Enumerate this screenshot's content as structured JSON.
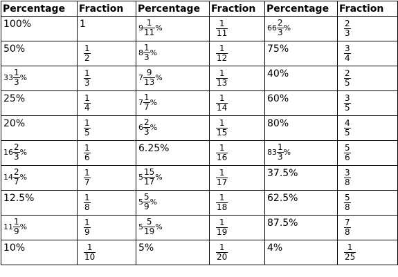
{
  "headers": [
    "Percentage",
    "Fraction",
    "Percentage",
    "Fraction",
    "Percentage",
    "Fraction"
  ],
  "rows": [
    [
      {
        "text": "100%"
      },
      {
        "text": "1"
      },
      {
        "whole": "9",
        "num": "1",
        "den": "11",
        "pct": "%"
      },
      {
        "num": "1",
        "den": "11"
      },
      {
        "whole": "66",
        "num": "2",
        "den": "3",
        "pct": "%"
      },
      {
        "num": "2",
        "den": "3"
      }
    ],
    [
      {
        "text": "50%"
      },
      {
        "num": "1",
        "den": "2"
      },
      {
        "whole": "8",
        "num": "1",
        "den": "3",
        "pct": "%"
      },
      {
        "num": "1",
        "den": "12"
      },
      {
        "text": "75%"
      },
      {
        "num": "3",
        "den": "4"
      }
    ],
    [
      {
        "whole": "33",
        "num": "1",
        "den": "3",
        "pct": "%"
      },
      {
        "num": "1",
        "den": "3"
      },
      {
        "whole": "7",
        "num": "9",
        "den": "13",
        "pct": "%"
      },
      {
        "num": "1",
        "den": "13"
      },
      {
        "text": "40%"
      },
      {
        "num": "2",
        "den": "5"
      }
    ],
    [
      {
        "text": "25%"
      },
      {
        "num": "1",
        "den": "4"
      },
      {
        "whole": "7",
        "num": "1",
        "den": "7",
        "pct": "%"
      },
      {
        "num": "1",
        "den": "14"
      },
      {
        "text": "60%"
      },
      {
        "num": "3",
        "den": "5"
      }
    ],
    [
      {
        "text": "20%"
      },
      {
        "num": "1",
        "den": "5"
      },
      {
        "whole": "6",
        "num": "2",
        "den": "3",
        "pct": "%"
      },
      {
        "num": "1",
        "den": "15"
      },
      {
        "text": "80%"
      },
      {
        "num": "4",
        "den": "5"
      }
    ],
    [
      {
        "whole": "16",
        "num": "2",
        "den": "3",
        "pct": "%"
      },
      {
        "num": "1",
        "den": "6"
      },
      {
        "text": "6.25%"
      },
      {
        "num": "1",
        "den": "16"
      },
      {
        "whole": "83",
        "num": "1",
        "den": "3",
        "pct": "%"
      },
      {
        "num": "5",
        "den": "6"
      }
    ],
    [
      {
        "whole": "14",
        "num": "2",
        "den": "7",
        "pct": "%"
      },
      {
        "num": "1",
        "den": "7"
      },
      {
        "whole": "5",
        "num": "15",
        "den": "17",
        "pct": "%"
      },
      {
        "num": "1",
        "den": "17"
      },
      {
        "text": "37.5%"
      },
      {
        "num": "3",
        "den": "8"
      }
    ],
    [
      {
        "text": "12.5%"
      },
      {
        "num": "1",
        "den": "8"
      },
      {
        "whole": "5",
        "num": "5",
        "den": "9",
        "pct": "%"
      },
      {
        "num": "1",
        "den": "18"
      },
      {
        "text": "62.5%"
      },
      {
        "num": "5",
        "den": "8"
      }
    ],
    [
      {
        "whole": "11",
        "num": "1",
        "den": "9",
        "pct": "%"
      },
      {
        "num": "1",
        "den": "9"
      },
      {
        "whole": "5",
        "num": "5",
        "den": "19",
        "pct": "%"
      },
      {
        "num": "1",
        "den": "19"
      },
      {
        "text": "87.5%"
      },
      {
        "num": "7",
        "den": "8"
      }
    ],
    [
      {
        "text": "10%"
      },
      {
        "num": "1",
        "den": "10"
      },
      {
        "text": "5%"
      },
      {
        "num": "1",
        "den": "20"
      },
      {
        "text": "4%"
      },
      {
        "num": "1",
        "den": "25"
      }
    ]
  ]
}
